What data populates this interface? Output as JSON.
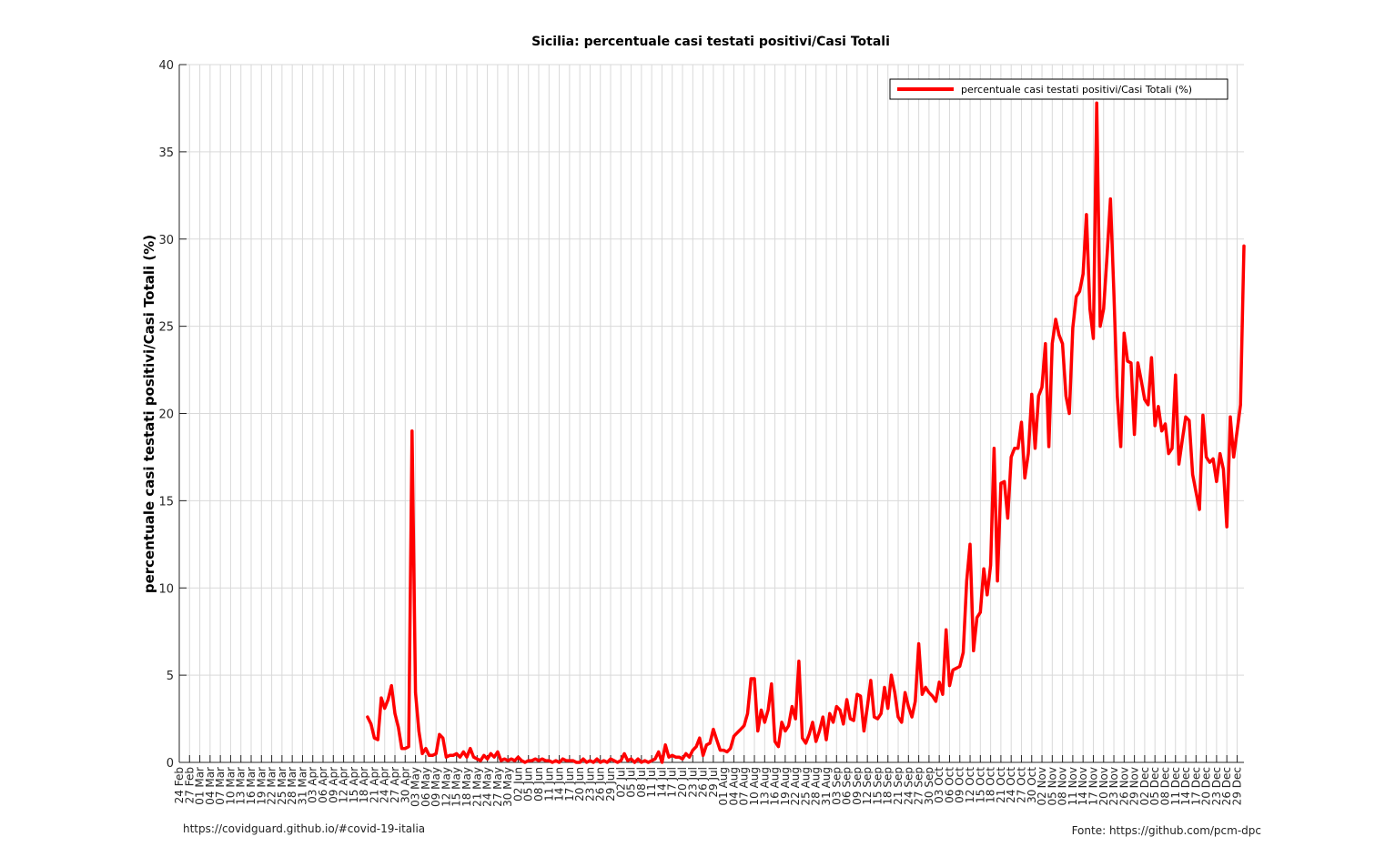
{
  "chart_data": {
    "type": "line",
    "title": "Sicilia: percentuale casi testati positivi/Casi Totali",
    "xlabel": "",
    "ylabel": "percentuale casi testati positivi/Casi Totali (%)",
    "ylim": [
      0,
      40
    ],
    "yticks": [
      0,
      5,
      10,
      15,
      20,
      25,
      30,
      35,
      40
    ],
    "x_start": "2020-02-24",
    "x_end": "2020-12-31",
    "xtick_labels": [
      "24 Feb",
      "27 Feb",
      "01 Mar",
      "04 Mar",
      "07 Mar",
      "10 Mar",
      "13 Mar",
      "16 Mar",
      "19 Mar",
      "22 Mar",
      "25 Mar",
      "28 Mar",
      "31 Mar",
      "03 Apr",
      "06 Apr",
      "09 Apr",
      "12 Apr",
      "15 Apr",
      "18 Apr",
      "21 Apr",
      "24 Apr",
      "27 Apr",
      "30 Apr",
      "03 May",
      "06 May",
      "09 May",
      "12 May",
      "15 May",
      "18 May",
      "21 May",
      "24 May",
      "27 May",
      "30 May",
      "02 Jun",
      "05 Jun",
      "08 Jun",
      "11 Jun",
      "14 Jun",
      "17 Jun",
      "20 Jun",
      "23 Jun",
      "26 Jun",
      "29 Jun",
      "02 Jul",
      "05 Jul",
      "08 Jul",
      "11 Jul",
      "14 Jul",
      "17 Jul",
      "20 Jul",
      "23 Jul",
      "26 Jul",
      "29 Jul",
      "01 Aug",
      "04 Aug",
      "07 Aug",
      "10 Aug",
      "13 Aug",
      "16 Aug",
      "19 Aug",
      "22 Aug",
      "25 Aug",
      "28 Aug",
      "31 Aug",
      "03 Sep",
      "06 Sep",
      "09 Sep",
      "12 Sep",
      "15 Sep",
      "18 Sep",
      "21 Sep",
      "24 Sep",
      "27 Sep",
      "30 Sep",
      "03 Oct",
      "06 Oct",
      "09 Oct",
      "12 Oct",
      "15 Oct",
      "18 Oct",
      "21 Oct",
      "24 Oct",
      "27 Oct",
      "30 Oct",
      "02 Nov",
      "05 Nov",
      "08 Nov",
      "11 Nov",
      "14 Nov",
      "17 Nov",
      "20 Nov",
      "23 Nov",
      "26 Nov",
      "29 Nov",
      "02 Dec",
      "05 Dec",
      "08 Dec",
      "11 Dec",
      "14 Dec",
      "17 Dec",
      "20 Dec",
      "23 Dec",
      "26 Dec",
      "29 Dec"
    ],
    "grid": true,
    "legend_position": "top-right",
    "series": [
      {
        "name": "percentuale casi testati positivi/Casi Totali (%)",
        "color": "#ff0000",
        "points": [
          [
            "2020-04-19",
            2.6
          ],
          [
            "2020-04-20",
            2.2
          ],
          [
            "2020-04-21",
            1.4
          ],
          [
            "2020-04-22",
            1.3
          ],
          [
            "2020-04-23",
            3.7
          ],
          [
            "2020-04-24",
            3.1
          ],
          [
            "2020-04-25",
            3.6
          ],
          [
            "2020-04-26",
            4.4
          ],
          [
            "2020-04-27",
            2.8
          ],
          [
            "2020-04-28",
            2.0
          ],
          [
            "2020-04-29",
            0.8
          ],
          [
            "2020-04-30",
            0.8
          ],
          [
            "2020-05-01",
            0.9
          ],
          [
            "2020-05-02",
            19.0
          ],
          [
            "2020-05-03",
            4.0
          ],
          [
            "2020-05-04",
            1.8
          ],
          [
            "2020-05-05",
            0.5
          ],
          [
            "2020-05-06",
            0.8
          ],
          [
            "2020-05-07",
            0.4
          ],
          [
            "2020-05-08",
            0.4
          ],
          [
            "2020-05-09",
            0.5
          ],
          [
            "2020-05-10",
            1.6
          ],
          [
            "2020-05-11",
            1.4
          ],
          [
            "2020-05-12",
            0.3
          ],
          [
            "2020-05-13",
            0.4
          ],
          [
            "2020-05-14",
            0.4
          ],
          [
            "2020-05-15",
            0.5
          ],
          [
            "2020-05-16",
            0.3
          ],
          [
            "2020-05-17",
            0.6
          ],
          [
            "2020-05-18",
            0.3
          ],
          [
            "2020-05-19",
            0.8
          ],
          [
            "2020-05-20",
            0.3
          ],
          [
            "2020-05-21",
            0.2
          ],
          [
            "2020-05-22",
            0.1
          ],
          [
            "2020-05-23",
            0.4
          ],
          [
            "2020-05-24",
            0.2
          ],
          [
            "2020-05-25",
            0.5
          ],
          [
            "2020-05-26",
            0.3
          ],
          [
            "2020-05-27",
            0.6
          ],
          [
            "2020-05-28",
            0.1
          ],
          [
            "2020-05-29",
            0.2
          ],
          [
            "2020-05-30",
            0.1
          ],
          [
            "2020-05-31",
            0.2
          ],
          [
            "2020-06-01",
            0.1
          ],
          [
            "2020-06-02",
            0.3
          ],
          [
            "2020-06-03",
            0.1
          ],
          [
            "2020-06-04",
            0.0
          ],
          [
            "2020-06-05",
            0.1
          ],
          [
            "2020-06-06",
            0.1
          ],
          [
            "2020-06-07",
            0.2
          ],
          [
            "2020-06-08",
            0.1
          ],
          [
            "2020-06-09",
            0.2
          ],
          [
            "2020-06-10",
            0.1
          ],
          [
            "2020-06-11",
            0.1
          ],
          [
            "2020-06-12",
            0.0
          ],
          [
            "2020-06-13",
            0.1
          ],
          [
            "2020-06-14",
            0.0
          ],
          [
            "2020-06-15",
            0.2
          ],
          [
            "2020-06-16",
            0.1
          ],
          [
            "2020-06-17",
            0.1
          ],
          [
            "2020-06-18",
            0.1
          ],
          [
            "2020-06-19",
            0.0
          ],
          [
            "2020-06-20",
            0.0
          ],
          [
            "2020-06-21",
            0.2
          ],
          [
            "2020-06-22",
            0.0
          ],
          [
            "2020-06-23",
            0.1
          ],
          [
            "2020-06-24",
            0.0
          ],
          [
            "2020-06-25",
            0.2
          ],
          [
            "2020-06-26",
            0.0
          ],
          [
            "2020-06-27",
            0.1
          ],
          [
            "2020-06-28",
            0.0
          ],
          [
            "2020-06-29",
            0.2
          ],
          [
            "2020-06-30",
            0.1
          ],
          [
            "2020-07-01",
            0.0
          ],
          [
            "2020-07-02",
            0.1
          ],
          [
            "2020-07-03",
            0.5
          ],
          [
            "2020-07-04",
            0.1
          ],
          [
            "2020-07-05",
            0.2
          ],
          [
            "2020-07-06",
            0.0
          ],
          [
            "2020-07-07",
            0.2
          ],
          [
            "2020-07-08",
            0.0
          ],
          [
            "2020-07-09",
            0.1
          ],
          [
            "2020-07-10",
            0.0
          ],
          [
            "2020-07-11",
            0.1
          ],
          [
            "2020-07-12",
            0.2
          ],
          [
            "2020-07-13",
            0.6
          ],
          [
            "2020-07-14",
            0.0
          ],
          [
            "2020-07-15",
            1.0
          ],
          [
            "2020-07-16",
            0.3
          ],
          [
            "2020-07-17",
            0.4
          ],
          [
            "2020-07-18",
            0.3
          ],
          [
            "2020-07-19",
            0.3
          ],
          [
            "2020-07-20",
            0.2
          ],
          [
            "2020-07-21",
            0.5
          ],
          [
            "2020-07-22",
            0.3
          ],
          [
            "2020-07-23",
            0.7
          ],
          [
            "2020-07-24",
            0.9
          ],
          [
            "2020-07-25",
            1.4
          ],
          [
            "2020-07-26",
            0.4
          ],
          [
            "2020-07-27",
            1.0
          ],
          [
            "2020-07-28",
            1.1
          ],
          [
            "2020-07-29",
            1.9
          ],
          [
            "2020-07-30",
            1.3
          ],
          [
            "2020-07-31",
            0.7
          ],
          [
            "2020-08-01",
            0.7
          ],
          [
            "2020-08-02",
            0.6
          ],
          [
            "2020-08-03",
            0.8
          ],
          [
            "2020-08-04",
            1.5
          ],
          [
            "2020-08-05",
            1.7
          ],
          [
            "2020-08-06",
            1.9
          ],
          [
            "2020-08-07",
            2.1
          ],
          [
            "2020-08-08",
            2.8
          ],
          [
            "2020-08-09",
            4.8
          ],
          [
            "2020-08-10",
            4.8
          ],
          [
            "2020-08-11",
            1.8
          ],
          [
            "2020-08-12",
            3.0
          ],
          [
            "2020-08-13",
            2.3
          ],
          [
            "2020-08-14",
            3.0
          ],
          [
            "2020-08-15",
            4.5
          ],
          [
            "2020-08-16",
            1.2
          ],
          [
            "2020-08-17",
            0.9
          ],
          [
            "2020-08-18",
            2.3
          ],
          [
            "2020-08-19",
            1.8
          ],
          [
            "2020-08-20",
            2.1
          ],
          [
            "2020-08-21",
            3.2
          ],
          [
            "2020-08-22",
            2.5
          ],
          [
            "2020-08-23",
            5.8
          ],
          [
            "2020-08-24",
            1.4
          ],
          [
            "2020-08-25",
            1.1
          ],
          [
            "2020-08-26",
            1.6
          ],
          [
            "2020-08-27",
            2.3
          ],
          [
            "2020-08-28",
            1.2
          ],
          [
            "2020-08-29",
            1.8
          ],
          [
            "2020-08-30",
            2.6
          ],
          [
            "2020-08-31",
            1.3
          ],
          [
            "2020-09-01",
            2.8
          ],
          [
            "2020-09-02",
            2.3
          ],
          [
            "2020-09-03",
            3.2
          ],
          [
            "2020-09-04",
            3.0
          ],
          [
            "2020-09-05",
            2.2
          ],
          [
            "2020-09-06",
            3.6
          ],
          [
            "2020-09-07",
            2.5
          ],
          [
            "2020-09-08",
            2.4
          ],
          [
            "2020-09-09",
            3.9
          ],
          [
            "2020-09-10",
            3.8
          ],
          [
            "2020-09-11",
            1.8
          ],
          [
            "2020-09-12",
            3.2
          ],
          [
            "2020-09-13",
            4.7
          ],
          [
            "2020-09-14",
            2.6
          ],
          [
            "2020-09-15",
            2.5
          ],
          [
            "2020-09-16",
            2.8
          ],
          [
            "2020-09-17",
            4.3
          ],
          [
            "2020-09-18",
            3.1
          ],
          [
            "2020-09-19",
            5.0
          ],
          [
            "2020-09-20",
            4.0
          ],
          [
            "2020-09-21",
            2.6
          ],
          [
            "2020-09-22",
            2.3
          ],
          [
            "2020-09-23",
            4.0
          ],
          [
            "2020-09-24",
            3.2
          ],
          [
            "2020-09-25",
            2.6
          ],
          [
            "2020-09-26",
            3.5
          ],
          [
            "2020-09-27",
            6.8
          ],
          [
            "2020-09-28",
            3.9
          ],
          [
            "2020-09-29",
            4.3
          ],
          [
            "2020-09-30",
            4.0
          ],
          [
            "2020-10-01",
            3.8
          ],
          [
            "2020-10-02",
            3.5
          ],
          [
            "2020-10-03",
            4.6
          ],
          [
            "2020-10-04",
            3.9
          ],
          [
            "2020-10-05",
            7.6
          ],
          [
            "2020-10-06",
            4.4
          ],
          [
            "2020-10-07",
            5.3
          ],
          [
            "2020-10-08",
            5.4
          ],
          [
            "2020-10-09",
            5.5
          ],
          [
            "2020-10-10",
            6.3
          ],
          [
            "2020-10-11",
            10.4
          ],
          [
            "2020-10-12",
            12.5
          ],
          [
            "2020-10-13",
            6.4
          ],
          [
            "2020-10-14",
            8.3
          ],
          [
            "2020-10-15",
            8.6
          ],
          [
            "2020-10-16",
            11.1
          ],
          [
            "2020-10-17",
            9.6
          ],
          [
            "2020-10-18",
            11.3
          ],
          [
            "2020-10-19",
            18.0
          ],
          [
            "2020-10-20",
            10.4
          ],
          [
            "2020-10-21",
            16.0
          ],
          [
            "2020-10-22",
            16.1
          ],
          [
            "2020-10-23",
            14.0
          ],
          [
            "2020-10-24",
            17.5
          ],
          [
            "2020-10-25",
            18.0
          ],
          [
            "2020-10-26",
            18.0
          ],
          [
            "2020-10-27",
            19.5
          ],
          [
            "2020-10-28",
            16.3
          ],
          [
            "2020-10-29",
            17.7
          ],
          [
            "2020-10-30",
            21.1
          ],
          [
            "2020-10-31",
            18.0
          ],
          [
            "2020-11-01",
            21.0
          ],
          [
            "2020-11-02",
            21.5
          ],
          [
            "2020-11-03",
            24.0
          ],
          [
            "2020-11-04",
            18.1
          ],
          [
            "2020-11-05",
            24.0
          ],
          [
            "2020-11-06",
            25.4
          ],
          [
            "2020-11-07",
            24.5
          ],
          [
            "2020-11-08",
            24.0
          ],
          [
            "2020-11-09",
            21.0
          ],
          [
            "2020-11-10",
            20.0
          ],
          [
            "2020-11-11",
            24.9
          ],
          [
            "2020-11-12",
            26.7
          ],
          [
            "2020-11-13",
            27.0
          ],
          [
            "2020-11-14",
            28.0
          ],
          [
            "2020-11-15",
            31.4
          ],
          [
            "2020-11-16",
            26.0
          ],
          [
            "2020-11-17",
            24.3
          ],
          [
            "2020-11-18",
            37.8
          ],
          [
            "2020-11-19",
            25.0
          ],
          [
            "2020-11-20",
            26.0
          ],
          [
            "2020-11-21",
            29.0
          ],
          [
            "2020-11-22",
            32.3
          ],
          [
            "2020-11-23",
            27.0
          ],
          [
            "2020-11-24",
            21.0
          ],
          [
            "2020-11-25",
            18.1
          ],
          [
            "2020-11-26",
            24.6
          ],
          [
            "2020-11-27",
            23.0
          ],
          [
            "2020-11-28",
            22.9
          ],
          [
            "2020-11-29",
            18.8
          ],
          [
            "2020-11-30",
            22.9
          ],
          [
            "2020-12-01",
            21.9
          ],
          [
            "2020-12-02",
            20.8
          ],
          [
            "2020-12-03",
            20.5
          ],
          [
            "2020-12-04",
            23.2
          ],
          [
            "2020-12-05",
            19.3
          ],
          [
            "2020-12-06",
            20.4
          ],
          [
            "2020-12-07",
            19.0
          ],
          [
            "2020-12-08",
            19.4
          ],
          [
            "2020-12-09",
            17.7
          ],
          [
            "2020-12-10",
            18.0
          ],
          [
            "2020-12-11",
            22.2
          ],
          [
            "2020-12-12",
            17.1
          ],
          [
            "2020-12-13",
            18.5
          ],
          [
            "2020-12-14",
            19.8
          ],
          [
            "2020-12-15",
            19.6
          ],
          [
            "2020-12-16",
            16.5
          ],
          [
            "2020-12-17",
            15.5
          ],
          [
            "2020-12-18",
            14.5
          ],
          [
            "2020-12-19",
            19.9
          ],
          [
            "2020-12-20",
            17.5
          ],
          [
            "2020-12-21",
            17.2
          ],
          [
            "2020-12-22",
            17.4
          ],
          [
            "2020-12-23",
            16.1
          ],
          [
            "2020-12-24",
            17.7
          ],
          [
            "2020-12-25",
            16.8
          ],
          [
            "2020-12-26",
            13.5
          ],
          [
            "2020-12-27",
            19.8
          ],
          [
            "2020-12-28",
            17.5
          ],
          [
            "2020-12-29",
            19.0
          ],
          [
            "2020-12-30",
            20.5
          ],
          [
            "2020-12-31",
            29.6
          ]
        ]
      }
    ]
  },
  "footer": {
    "left": "https://covidguard.github.io/#covid-19-italia",
    "right": "Fonte: https://github.com/pcm-dpc"
  }
}
